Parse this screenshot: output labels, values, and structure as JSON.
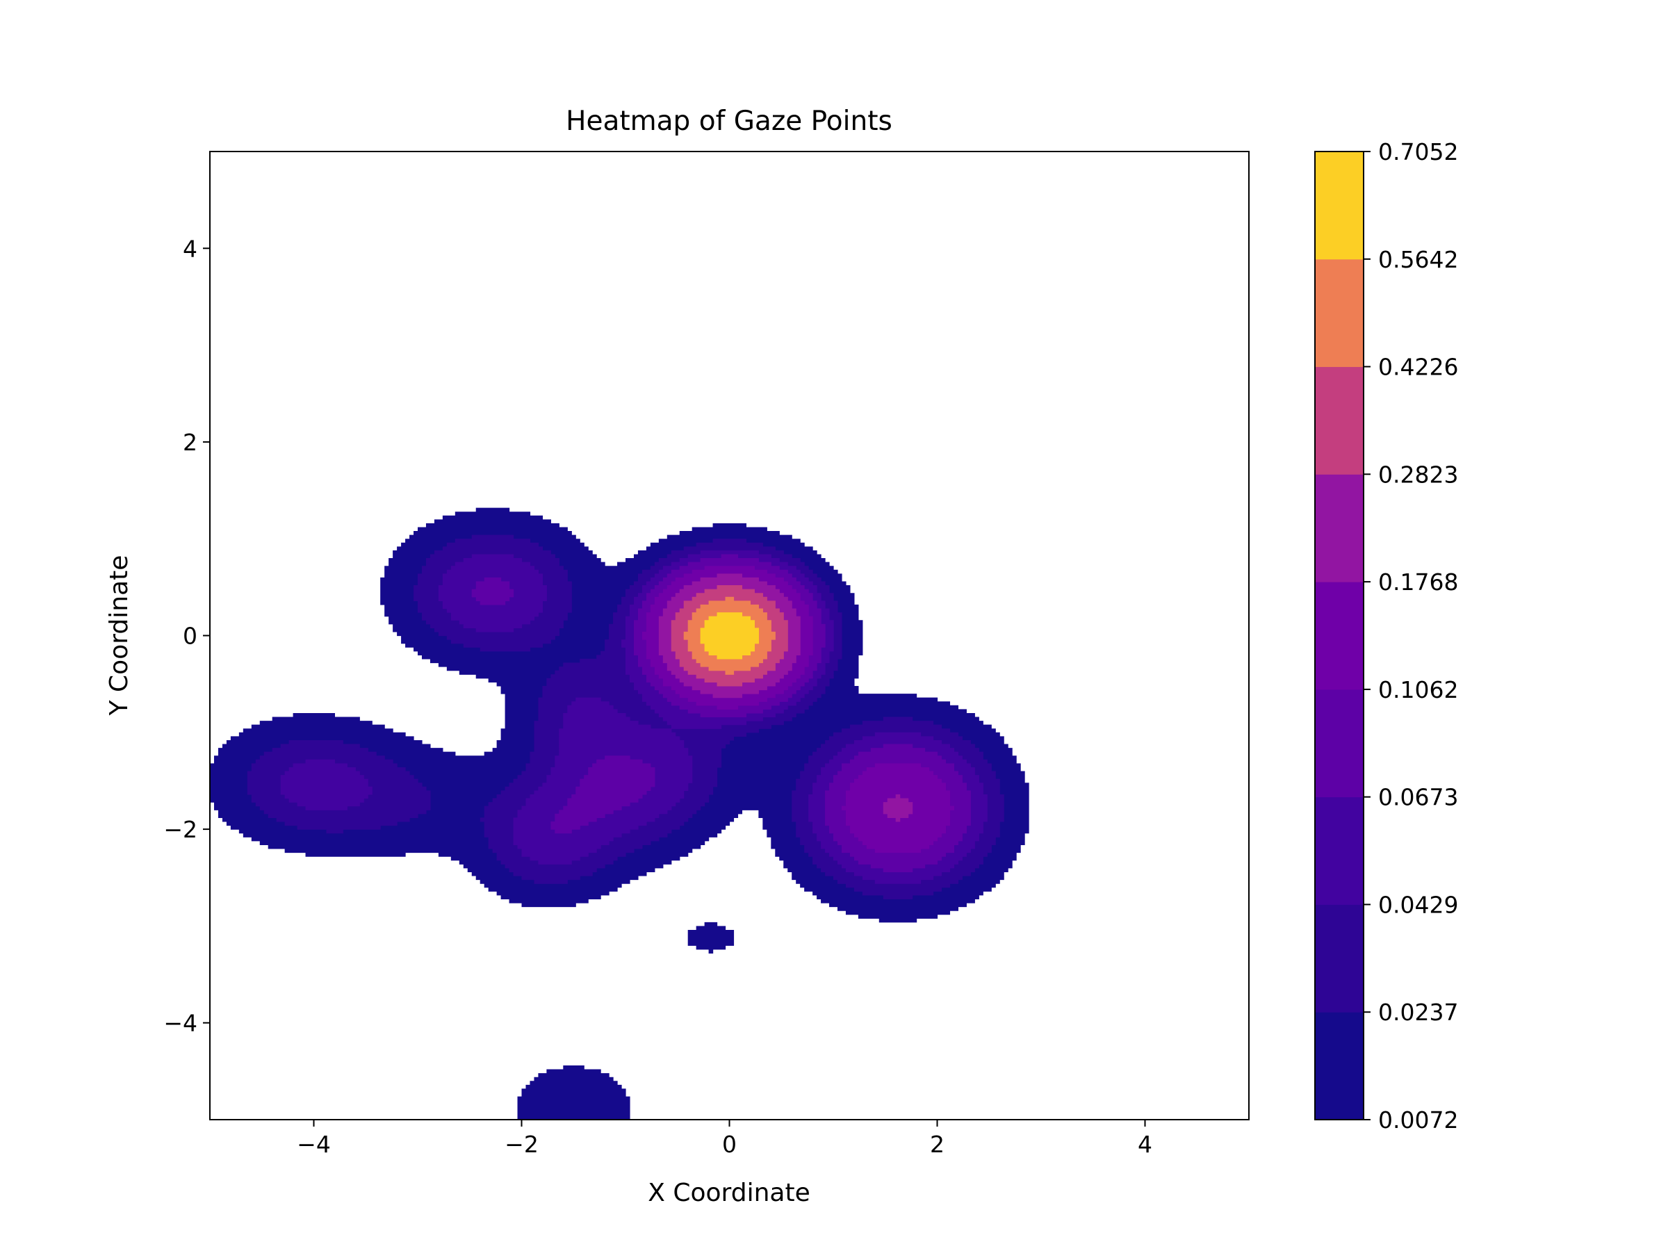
{
  "chart_data": {
    "type": "heatmap",
    "subtype": "filled-contour",
    "title": "Heatmap of Gaze Points",
    "xlabel": "X Coordinate",
    "ylabel": "Y Coordinate",
    "xlim": [
      -5,
      5
    ],
    "ylim": [
      -5,
      5
    ],
    "xticks": [
      -4,
      -2,
      0,
      2,
      4
    ],
    "xtick_labels": [
      "−4",
      "−2",
      "0",
      "2",
      "4"
    ],
    "yticks": [
      -4,
      -2,
      0,
      2,
      4
    ],
    "ytick_labels": [
      "−4",
      "−2",
      "0",
      "2",
      "4"
    ],
    "grid": false,
    "colormap": "plasma",
    "colorbar": {
      "levels": [
        0.0072,
        0.0237,
        0.0429,
        0.0673,
        0.1062,
        0.1768,
        0.2823,
        0.4226,
        0.5642,
        0.7052
      ],
      "labels": [
        "0.0072",
        "0.0237",
        "0.0429",
        "0.0673",
        "0.1062",
        "0.1768",
        "0.2823",
        "0.4226",
        "0.5642",
        "0.7052"
      ],
      "colors": [
        "#150a8c",
        "#2e0595",
        "#4203a0",
        "#5d01a6",
        "#6f00a8",
        "#9215a2",
        "#c43e7f",
        "#ee7e54",
        "#fccf25"
      ]
    },
    "density_sources": [
      {
        "x": 0.0,
        "y": 0.0,
        "sx": 0.42,
        "sy": 0.38,
        "w": 0.7
      },
      {
        "x": 1.62,
        "y": -1.78,
        "sx": 0.5,
        "sy": 0.46,
        "w": 0.183
      },
      {
        "x": -2.28,
        "y": 0.45,
        "sx": 0.5,
        "sy": 0.4,
        "w": 0.072
      },
      {
        "x": -4.0,
        "y": -1.52,
        "sx": 0.52,
        "sy": 0.36,
        "w": 0.05
      },
      {
        "x": -3.05,
        "y": -1.72,
        "sx": 0.6,
        "sy": 0.34,
        "w": 0.02
      },
      {
        "x": -1.1,
        "y": -1.62,
        "sx": 0.5,
        "sy": 0.4,
        "w": 0.058
      },
      {
        "x": -1.75,
        "y": -2.1,
        "sx": 0.4,
        "sy": 0.36,
        "w": 0.05
      },
      {
        "x": -1.4,
        "y": -0.8,
        "sx": 0.38,
        "sy": 0.42,
        "w": 0.042
      },
      {
        "x": -0.55,
        "y": -1.3,
        "sx": 0.4,
        "sy": 0.36,
        "w": 0.03
      },
      {
        "x": -0.18,
        "y": -3.12,
        "sx": 0.22,
        "sy": 0.14,
        "w": 0.012
      },
      {
        "x": -1.5,
        "y": -4.88,
        "sx": 0.38,
        "sy": 0.3,
        "w": 0.02
      }
    ]
  }
}
